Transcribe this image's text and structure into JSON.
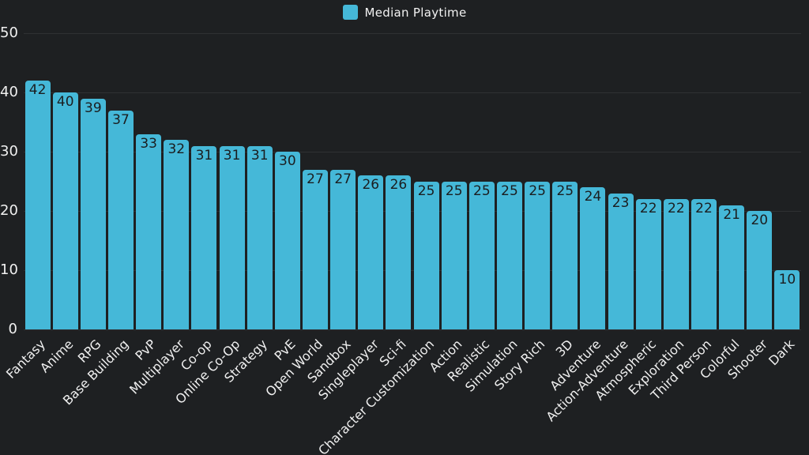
{
  "chart_data": {
    "type": "bar",
    "legend": {
      "label": "Median Playtime",
      "position": "top"
    },
    "categories": [
      "Fantasy",
      "Anime",
      "RPG",
      "Base Building",
      "PvP",
      "Multiplayer",
      "Co-op",
      "Online Co-Op",
      "Strategy",
      "PvE",
      "Open World",
      "Sandbox",
      "Singleplayer",
      "Sci-fi",
      "Character Customization",
      "Action",
      "Realistic",
      "Simulation",
      "Story Rich",
      "3D",
      "Adventure",
      "Action-Adventure",
      "Atmospheric",
      "Exploration",
      "Third Person",
      "Colorful",
      "Shooter",
      "Dark"
    ],
    "values": [
      42,
      40,
      39,
      37,
      33,
      32,
      31,
      31,
      31,
      30,
      27,
      27,
      26,
      26,
      25,
      25,
      25,
      25,
      25,
      25,
      24,
      23,
      22,
      22,
      22,
      21,
      20,
      10
    ],
    "title": "",
    "xlabel": "",
    "ylabel": "",
    "ylim": [
      0,
      50
    ],
    "yticks": [
      0,
      10,
      20,
      30,
      40,
      50
    ],
    "grid": "horizontal",
    "colors": {
      "bar": "#45b8d8",
      "background": "#1e2022",
      "gridline": "rgba(255,255,255,0.08)",
      "axis_text": "#f0f0f0",
      "value_label_text": "#1b1d1f"
    }
  }
}
